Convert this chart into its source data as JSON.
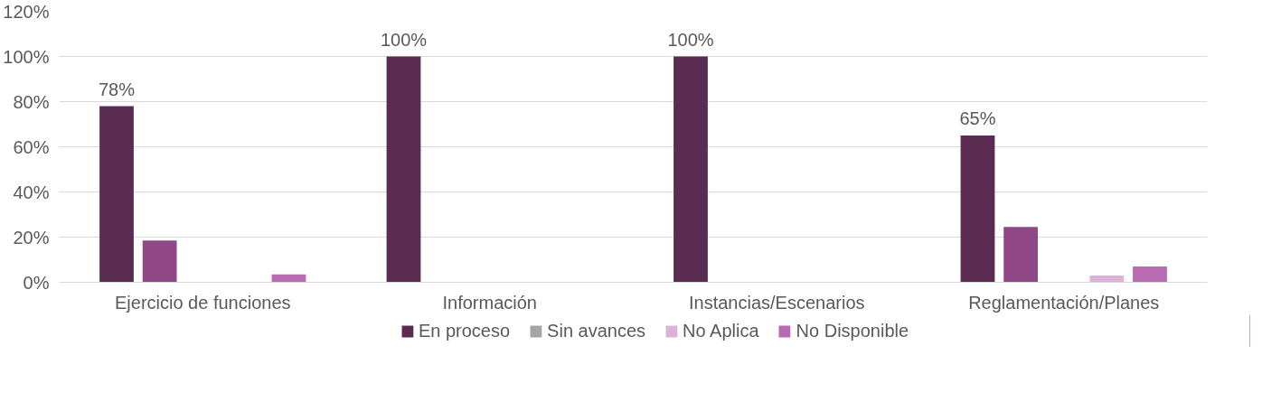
{
  "chart_data": {
    "type": "bar",
    "categories": [
      "Ejercicio de funciones",
      "Información",
      "Instancias/Escenarios",
      "Reglamentación/Planes"
    ],
    "series": [
      {
        "name": "En proceso",
        "color": "#5a2c51",
        "values": [
          78,
          100,
          100,
          65
        ],
        "value_labels": [
          "78%",
          "100%",
          "100%",
          "65%"
        ]
      },
      {
        "color": "#8f4785",
        "values": [
          18.5,
          0,
          0,
          24.5
        ]
      },
      {
        "name": "Sin avances",
        "color": "#a5a5a5",
        "values": [
          0,
          0,
          0,
          0
        ]
      },
      {
        "name": "No Aplica",
        "color": "#dbb3d8",
        "values": [
          0,
          0,
          0,
          3
        ]
      },
      {
        "name": "No Disponible",
        "color": "#b86bb0",
        "values": [
          3.5,
          0,
          0,
          7
        ]
      }
    ],
    "ylim": [
      0,
      120
    ],
    "yticks": [
      {
        "value": 0,
        "label": "0%"
      },
      {
        "value": 20,
        "label": "20%"
      },
      {
        "value": 40,
        "label": "40%"
      },
      {
        "value": 60,
        "label": "60%"
      },
      {
        "value": 80,
        "label": "80%"
      },
      {
        "value": 100,
        "label": "100%"
      },
      {
        "value": 120,
        "label": "120%"
      }
    ],
    "grid": "y",
    "legend": "bottom"
  }
}
